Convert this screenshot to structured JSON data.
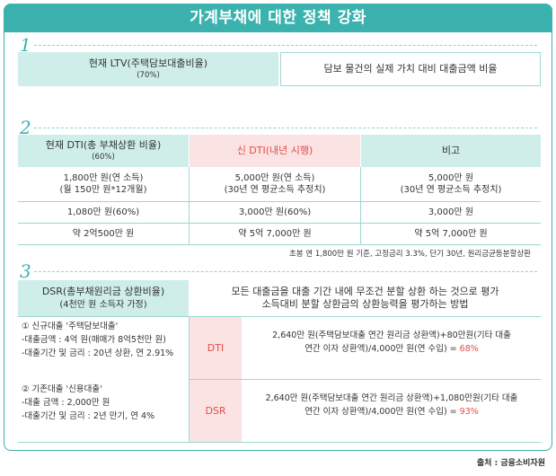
{
  "title": "가계부채에 대한 정책 강화",
  "section_numbers": [
    "1",
    "2",
    "3"
  ],
  "s1": {
    "left_line1": "현재 LTV(주택담보대출비율)",
    "left_line2": "(70%)",
    "right": "담보 물건의 실제 가치 대비 대출금액 비율"
  },
  "s2": {
    "headers": [
      {
        "line1": "현재 DTI(총 부채상환 비율)",
        "line2": "(60%)"
      },
      {
        "line1": "신 DTI(내년 시행)",
        "line2": ""
      },
      {
        "line1": "비고",
        "line2": ""
      }
    ],
    "rows": [
      [
        {
          "line1": "1,800만 원(연 소득)",
          "line2": "(월 150만 원*12개월)"
        },
        {
          "line1": "5,000만 원(연 소득)",
          "line2": "(30년 연 평균소득 추정치)"
        },
        {
          "line1": "5,000만 원",
          "line2": "(30년 연 평균소득 추정치)"
        }
      ],
      [
        {
          "line1": "1,080만 원(60%)",
          "line2": ""
        },
        {
          "line1": "3,000만 원(60%)",
          "line2": ""
        },
        {
          "line1": "3,000만 원",
          "line2": ""
        }
      ],
      [
        {
          "line1": "약 2억500만 원",
          "line2": ""
        },
        {
          "line1": "약 5억 7,000만 원",
          "line2": ""
        },
        {
          "line1": "약 5억 7,000만 원",
          "line2": ""
        }
      ]
    ],
    "note": "초봉 연 1,800만 원 기준, 고정금리 3.3%, 단기 30년, 원리금균등분할상환"
  },
  "s3": {
    "left_header_line1": "DSR(총부채원리금 상환비율)",
    "left_header_line2": "(4천만 원 소득자 가정)",
    "right_header_line1": "모든 대출금을 대출 기간 내에 무조건 분할 상환 하는 것으로 평가",
    "right_header_line2": "소득대비 분할 상환금의 상환능력을 평가하는 방법",
    "case1": [
      "① 신규대출 '주택담보대출'",
      "-대출금액 : 4억 원(매매가 8억5천만 원)",
      "-대출기간 및 금리 : 20년 상환, 연 2.91%"
    ],
    "case2": [
      "② 기존대출 '신용대출'",
      "-대출 금액 : 2,000만 원",
      "-대출기간 및 금리 : 2년 만기, 연 4%"
    ],
    "dti": {
      "label": "DTI",
      "line1": "2,640만 원(주택담보대출 연간 원리금 상환액)+80만원(기타 대출",
      "line2": "연간 이자 상환액)/4,000만 원(연 수입) = ",
      "result": "68%"
    },
    "dsr": {
      "label": "DSR",
      "line1": "2,640만 원(주택담보대출 연간 원리금 상환액)+1,080만원(기타 대출",
      "line2": "연간 이자 상환액)/4,000만 원(연 수입) = ",
      "result": "93%"
    }
  },
  "source": "출처 : 금융소비자원",
  "colors": {
    "accent": "#3bb2ad",
    "header_teal": "#cfeeea",
    "header_pink": "#fbe3e3",
    "highlight_red": "#e84a4a"
  }
}
